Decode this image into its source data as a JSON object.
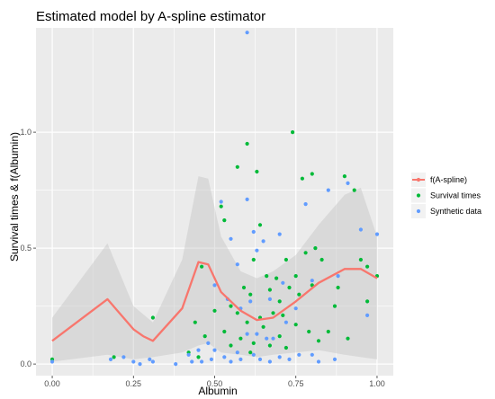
{
  "chart_data": {
    "type": "scatter",
    "title": "Estimated model by A-spline estimator",
    "xlabel": "Albumin",
    "ylabel": "Survival times & f(Albumin)",
    "xlim": [
      -0.05,
      1.05
    ],
    "ylim": [
      -0.05,
      1.45
    ],
    "x_ticks": [
      0.0,
      0.25,
      0.5,
      0.75,
      1.0
    ],
    "x_tick_labels": [
      "0.00",
      "0.25",
      "0.50",
      "0.75",
      "1.00"
    ],
    "y_ticks": [
      0.0,
      0.5,
      1.0
    ],
    "y_tick_labels": [
      "0.0",
      "0.5",
      "1.0"
    ],
    "grid": true,
    "legend_position": "right",
    "band": {
      "x": [
        0.0,
        0.17,
        0.25,
        0.31,
        0.4,
        0.45,
        0.48,
        0.52,
        0.58,
        0.63,
        0.68,
        0.75,
        0.82,
        0.9,
        0.95,
        1.0
      ],
      "upper": [
        0.2,
        0.52,
        0.25,
        0.18,
        0.45,
        0.81,
        0.8,
        0.55,
        0.4,
        0.37,
        0.4,
        0.47,
        0.6,
        0.73,
        0.76,
        0.55
      ],
      "lower": [
        0.01,
        0.04,
        0.02,
        0.03,
        0.05,
        0.08,
        0.09,
        0.05,
        0.04,
        0.03,
        0.04,
        0.05,
        0.06,
        0.04,
        0.03,
        0.02
      ]
    },
    "series": [
      {
        "name": "f(A-spline)",
        "kind": "line",
        "color": "#F8766D",
        "x": [
          0.0,
          0.17,
          0.25,
          0.28,
          0.31,
          0.4,
          0.45,
          0.48,
          0.52,
          0.58,
          0.63,
          0.68,
          0.75,
          0.82,
          0.9,
          0.95,
          1.0
        ],
        "y": [
          0.1,
          0.28,
          0.15,
          0.12,
          0.1,
          0.24,
          0.44,
          0.43,
          0.31,
          0.23,
          0.19,
          0.2,
          0.27,
          0.35,
          0.41,
          0.41,
          0.37
        ]
      },
      {
        "name": "Survival times",
        "kind": "points",
        "color": "#00BA38",
        "x": [
          0.0,
          0.19,
          0.31,
          0.42,
          0.44,
          0.45,
          0.46,
          0.47,
          0.5,
          0.52,
          0.53,
          0.53,
          0.55,
          0.55,
          0.57,
          0.57,
          0.58,
          0.59,
          0.6,
          0.6,
          0.61,
          0.61,
          0.62,
          0.62,
          0.63,
          0.64,
          0.64,
          0.65,
          0.66,
          0.67,
          0.67,
          0.68,
          0.69,
          0.7,
          0.7,
          0.71,
          0.72,
          0.72,
          0.73,
          0.74,
          0.75,
          0.75,
          0.76,
          0.77,
          0.78,
          0.79,
          0.8,
          0.8,
          0.81,
          0.82,
          0.83,
          0.85,
          0.87,
          0.88,
          0.9,
          0.91,
          0.93,
          0.95,
          0.97,
          0.97,
          1.0
        ],
        "y": [
          0.02,
          0.03,
          0.2,
          0.05,
          0.18,
          0.03,
          0.42,
          0.12,
          0.23,
          0.68,
          0.62,
          0.14,
          0.08,
          0.25,
          0.85,
          0.22,
          0.11,
          0.33,
          0.95,
          0.18,
          0.05,
          0.3,
          0.45,
          0.09,
          0.83,
          0.6,
          0.2,
          0.16,
          0.38,
          0.32,
          0.08,
          0.22,
          0.37,
          0.27,
          0.12,
          0.21,
          0.45,
          0.07,
          0.33,
          1.0,
          0.17,
          0.38,
          0.3,
          0.8,
          0.48,
          0.14,
          0.82,
          0.34,
          0.5,
          0.1,
          0.45,
          0.14,
          0.25,
          0.33,
          0.81,
          0.11,
          0.75,
          0.45,
          0.27,
          0.42,
          0.38
        ]
      },
      {
        "name": "Synthetic data",
        "kind": "points",
        "color": "#619CFF",
        "x": [
          0.0,
          0.18,
          0.22,
          0.25,
          0.27,
          0.3,
          0.31,
          0.38,
          0.42,
          0.43,
          0.45,
          0.46,
          0.48,
          0.49,
          0.5,
          0.5,
          0.52,
          0.53,
          0.54,
          0.55,
          0.55,
          0.57,
          0.57,
          0.58,
          0.58,
          0.6,
          0.6,
          0.6,
          0.61,
          0.62,
          0.62,
          0.63,
          0.63,
          0.64,
          0.65,
          0.66,
          0.67,
          0.67,
          0.68,
          0.7,
          0.7,
          0.71,
          0.72,
          0.73,
          0.75,
          0.76,
          0.78,
          0.8,
          0.8,
          0.82,
          0.85,
          0.87,
          0.88,
          0.91,
          0.95,
          0.97,
          1.0
        ],
        "y": [
          0.01,
          0.02,
          0.03,
          0.01,
          0.0,
          0.02,
          0.01,
          0.0,
          0.04,
          0.01,
          0.06,
          0.01,
          0.09,
          0.02,
          0.34,
          0.06,
          0.7,
          0.03,
          0.28,
          0.01,
          0.54,
          0.43,
          0.05,
          0.24,
          0.02,
          1.43,
          0.71,
          0.13,
          0.27,
          0.04,
          0.57,
          0.13,
          0.49,
          0.02,
          0.53,
          0.11,
          0.28,
          0.01,
          0.11,
          0.56,
          0.03,
          0.35,
          0.18,
          0.02,
          0.24,
          0.04,
          0.69,
          0.36,
          0.04,
          0.01,
          0.75,
          0.02,
          0.38,
          0.78,
          0.58,
          0.21,
          0.56
        ]
      }
    ]
  }
}
